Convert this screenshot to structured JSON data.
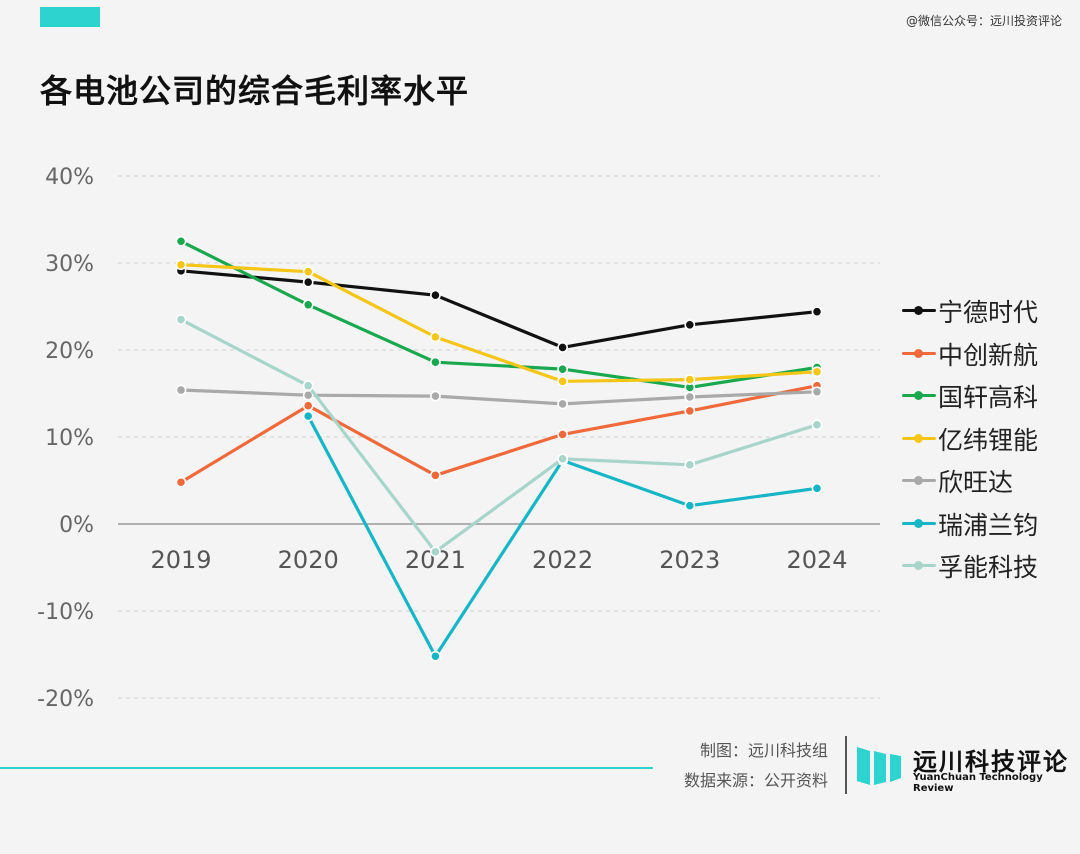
{
  "header": {
    "watermark": "@微信公众号：远川投资评论",
    "title": "各电池公司的综合毛利率水平"
  },
  "chart_data": {
    "type": "line",
    "title": "各电池公司的综合毛利率水平",
    "xlabel": "",
    "ylabel": "",
    "ylim": [
      -20,
      40
    ],
    "y_ticks": [
      40,
      30,
      20,
      10,
      0,
      -10,
      -20
    ],
    "y_tick_labels": [
      "40%",
      "30%",
      "20%",
      "10%",
      "0%",
      "-10%",
      "-20%"
    ],
    "grid": true,
    "legend_position": "right",
    "categories": [
      "2019",
      "2020",
      "2021",
      "2022",
      "2023",
      "2024"
    ],
    "series": [
      {
        "name": "宁德时代",
        "color": "#111111",
        "values": [
          29.1,
          27.8,
          26.3,
          20.3,
          22.9,
          24.4
        ]
      },
      {
        "name": "中创新航",
        "color": "#f0693a",
        "values": [
          4.8,
          13.6,
          5.6,
          10.3,
          13.0,
          15.9
        ]
      },
      {
        "name": "国轩高科",
        "color": "#1aa84f",
        "values": [
          32.5,
          25.2,
          18.6,
          17.8,
          15.7,
          18.0
        ]
      },
      {
        "name": "亿纬锂能",
        "color": "#f5c518",
        "values": [
          29.8,
          29.0,
          21.5,
          16.4,
          16.6,
          17.5
        ]
      },
      {
        "name": "欣旺达",
        "color": "#a9a9a9",
        "values": [
          15.4,
          14.8,
          14.7,
          13.8,
          14.6,
          15.2
        ]
      },
      {
        "name": "瑞浦兰钧",
        "color": "#16b6c6",
        "values": [
          null,
          12.4,
          -15.2,
          7.3,
          2.1,
          4.1
        ]
      },
      {
        "name": "孚能科技",
        "color": "#a8d5ca",
        "values": [
          23.5,
          15.9,
          -3.2,
          7.5,
          6.8,
          11.4
        ]
      }
    ]
  },
  "footer": {
    "credit_1": "制图：远川科技组",
    "credit_2": "数据来源：公开资料",
    "brand_cn": "远川科技评论",
    "brand_en": "YuanChuan Technology Review",
    "accent_color": "#2dd3cf"
  }
}
